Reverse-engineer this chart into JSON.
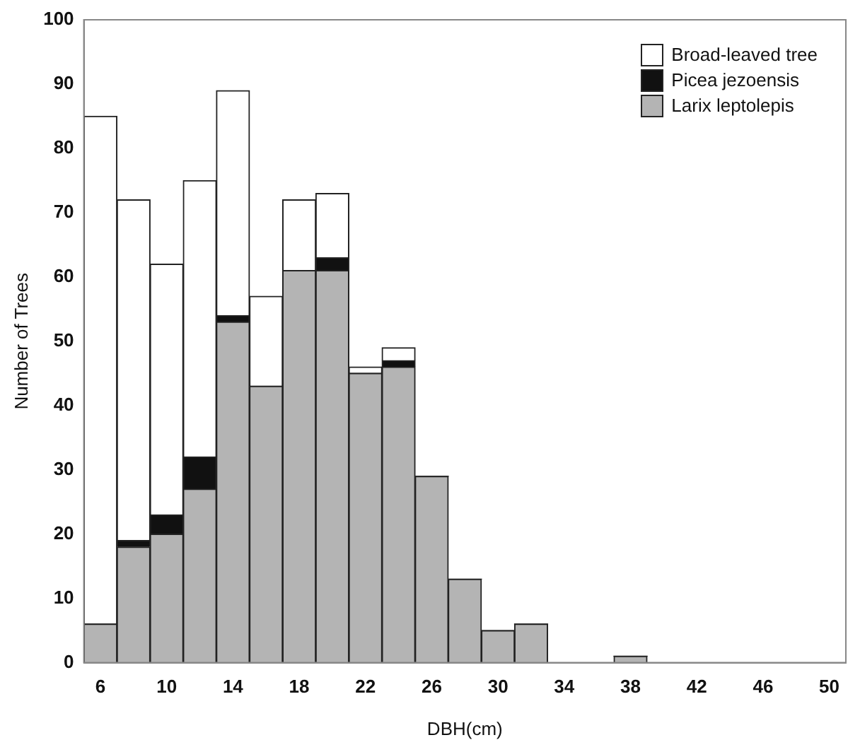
{
  "chart_data": {
    "type": "bar",
    "stacked": true,
    "xlabel": "DBH(cm)",
    "ylabel": "Number of Trees",
    "categories": [
      "6",
      null,
      "10",
      null,
      "14",
      null,
      "18",
      null,
      "22",
      null,
      "26",
      null,
      "30",
      null,
      "34",
      null,
      "38",
      null,
      "42",
      null,
      "46",
      null,
      "50"
    ],
    "series": [
      {
        "name": "Larix leptolepis",
        "color": "#b4b4b4",
        "values": [
          6,
          18,
          20,
          27,
          53,
          43,
          61,
          61,
          45,
          46,
          29,
          13,
          5,
          6,
          0,
          0,
          1,
          0,
          0,
          0,
          0,
          0,
          0
        ]
      },
      {
        "name": "Picea jezoensis",
        "color": "#111111",
        "values": [
          0,
          1,
          3,
          5,
          1,
          0,
          0,
          2,
          0,
          1,
          0,
          0,
          0,
          0,
          0,
          0,
          0,
          0,
          0,
          0,
          0,
          0,
          0
        ]
      },
      {
        "name": "Broad-leaved tree",
        "color": "#ffffff",
        "values": [
          79,
          53,
          39,
          43,
          35,
          14,
          11,
          10,
          1,
          2,
          0,
          0,
          0,
          0,
          0,
          0,
          0,
          0,
          0,
          0,
          0,
          0,
          0
        ]
      }
    ],
    "ylim": [
      0,
      100
    ],
    "yticks": [
      0,
      10,
      20,
      30,
      40,
      50,
      60,
      70,
      80,
      90,
      100
    ],
    "grid": false,
    "legend": "top right"
  }
}
